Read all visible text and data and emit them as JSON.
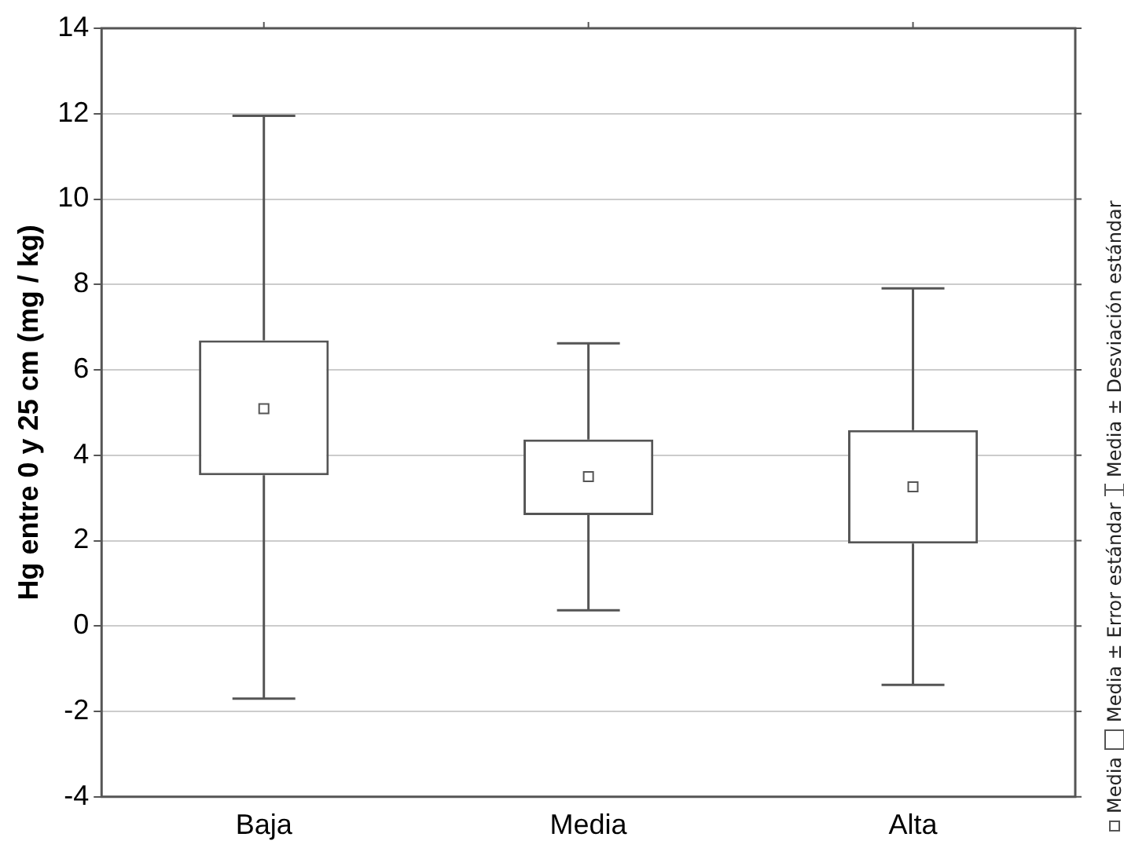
{
  "chart_data": {
    "type": "box",
    "ylabel": "Hg entre 0 y 25 cm (mg / kg)",
    "categories": [
      "Baja",
      "Media",
      "Alta"
    ],
    "boxes": [
      {
        "low": -1.7,
        "q1": 3.53,
        "q3": 6.69,
        "high": 11.95,
        "mean": 5.09
      },
      {
        "low": 0.37,
        "q1": 2.6,
        "q3": 4.37,
        "high": 6.62,
        "mean": 3.5
      },
      {
        "low": -1.38,
        "q1": 1.93,
        "q3": 4.59,
        "high": 7.91,
        "mean": 3.26
      }
    ],
    "color": "#555555",
    "ylim": [
      -4,
      14
    ],
    "yticks": [
      -4,
      -2,
      0,
      2,
      4,
      6,
      8,
      10,
      12,
      14
    ],
    "grid": "y",
    "annotations": [
      "Media",
      "Media ± Error estándar",
      "Media ± Desviación estándar"
    ]
  }
}
